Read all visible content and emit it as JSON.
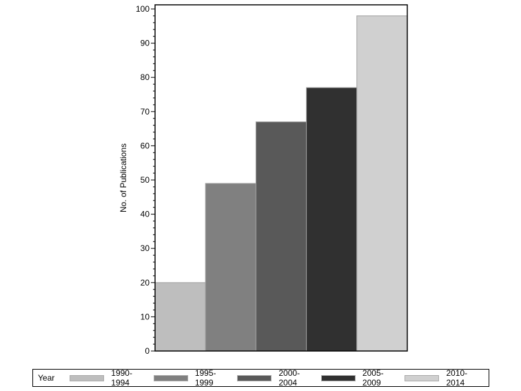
{
  "chart_data": {
    "type": "bar",
    "title": "",
    "xlabel": "",
    "ylabel": "No. of Publications",
    "categories": [
      "1990-1994",
      "1995-1999",
      "2000-2004",
      "2005-2009",
      "2010-2014"
    ],
    "values": [
      20,
      49,
      67,
      77,
      98
    ],
    "colors": [
      "#bebebe",
      "#808080",
      "#595959",
      "#303030",
      "#d0d0d0"
    ],
    "ylim": [
      0,
      100
    ],
    "yticks": [
      0,
      10,
      20,
      30,
      40,
      50,
      60,
      70,
      80,
      90,
      100
    ],
    "minor_ticks_per_major": 4,
    "grid": false,
    "legend_position": "bottom",
    "legend_title": "Year"
  },
  "legend": {
    "title": "Year",
    "items": [
      {
        "label": "1990-1994",
        "color": "#bebebe"
      },
      {
        "label": "1995-1999",
        "color": "#808080"
      },
      {
        "label": "2000-2004",
        "color": "#595959"
      },
      {
        "label": "2005-2009",
        "color": "#303030"
      },
      {
        "label": "2010-2014",
        "color": "#d0d0d0"
      }
    ]
  }
}
